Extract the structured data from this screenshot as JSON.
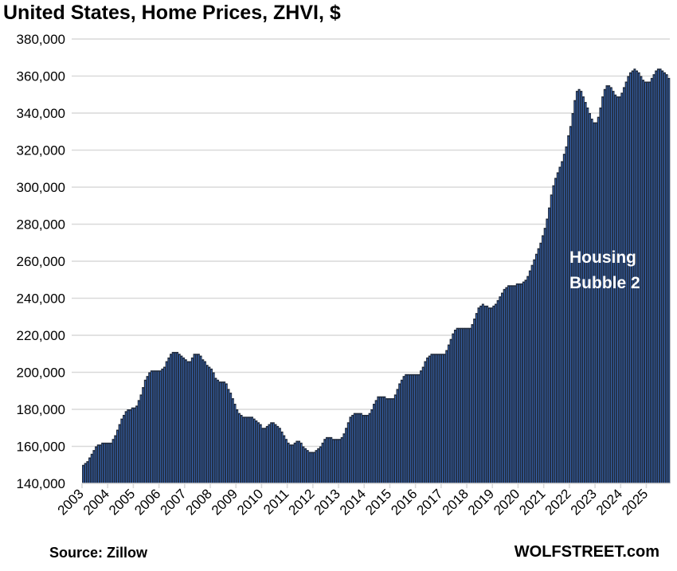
{
  "chart_data": {
    "type": "bar",
    "title": "United States, Home Prices, ZHVI, $",
    "xlabel": "",
    "ylabel": "",
    "frequency": "monthly",
    "start": "2003-01",
    "end": "2025-11",
    "ylim": [
      140000,
      380000
    ],
    "yticks": [
      "140,000",
      "160,000",
      "180,000",
      "200,000",
      "220,000",
      "240,000",
      "260,000",
      "280,000",
      "300,000",
      "320,000",
      "340,000",
      "360,000",
      "380,000"
    ],
    "xticks": [
      "2003",
      "2004",
      "2005",
      "2006",
      "2007",
      "2008",
      "2009",
      "2010",
      "2011",
      "2012",
      "2013",
      "2014",
      "2015",
      "2016",
      "2017",
      "2018",
      "2019",
      "2020",
      "2021",
      "2022",
      "2023",
      "2024",
      "2025"
    ],
    "grid": true,
    "annotation": [
      "Housing",
      "Bubble 2"
    ],
    "source": "Source: Zillow",
    "brand": "WOLFSTREET.com",
    "colors": {
      "bar": "#202a3b",
      "bar_line": "#3a6cc0",
      "grid": "#d9d9d9"
    },
    "values": [
      150000,
      151000,
      152000,
      154000,
      156000,
      158000,
      160000,
      161000,
      161000,
      162000,
      162000,
      162000,
      162000,
      162000,
      164000,
      166000,
      169000,
      172000,
      175000,
      177000,
      179000,
      180000,
      180000,
      181000,
      181000,
      182000,
      185000,
      188000,
      192000,
      196000,
      198000,
      200000,
      201000,
      201000,
      201000,
      201000,
      201000,
      202000,
      203000,
      206000,
      208000,
      210000,
      211000,
      211000,
      211000,
      210000,
      209000,
      208000,
      207000,
      206000,
      206000,
      208000,
      210000,
      210000,
      210000,
      209000,
      207000,
      206000,
      204000,
      203000,
      202000,
      200000,
      197000,
      196000,
      195000,
      195000,
      195000,
      194000,
      191000,
      189000,
      186000,
      183000,
      180000,
      178000,
      177000,
      176000,
      176000,
      176000,
      176000,
      176000,
      175000,
      174000,
      173000,
      172000,
      170000,
      170000,
      171000,
      172000,
      173000,
      173000,
      172000,
      171000,
      170000,
      168000,
      166000,
      164000,
      162000,
      161000,
      161000,
      162000,
      163000,
      163000,
      162000,
      160000,
      159000,
      158000,
      157000,
      157000,
      157000,
      158000,
      159000,
      160000,
      162000,
      164000,
      165000,
      165000,
      165000,
      164000,
      164000,
      164000,
      164000,
      165000,
      167000,
      170000,
      173000,
      176000,
      177000,
      178000,
      178000,
      178000,
      178000,
      177000,
      177000,
      177000,
      178000,
      180000,
      183000,
      185000,
      187000,
      187000,
      187000,
      187000,
      186000,
      186000,
      186000,
      186000,
      188000,
      191000,
      194000,
      196000,
      198000,
      199000,
      199000,
      199000,
      199000,
      199000,
      199000,
      199000,
      201000,
      203000,
      206000,
      208000,
      209000,
      210000,
      210000,
      210000,
      210000,
      210000,
      210000,
      210000,
      212000,
      215000,
      218000,
      221000,
      223000,
      224000,
      224000,
      224000,
      224000,
      224000,
      224000,
      224000,
      226000,
      229000,
      232000,
      235000,
      236000,
      237000,
      236000,
      236000,
      235000,
      235000,
      236000,
      237000,
      239000,
      241000,
      243000,
      245000,
      246000,
      247000,
      247000,
      247000,
      247000,
      248000,
      248000,
      248000,
      249000,
      250000,
      252000,
      255000,
      258000,
      261000,
      264000,
      267000,
      270000,
      274000,
      278000,
      283000,
      289000,
      296000,
      301000,
      305000,
      308000,
      311000,
      314000,
      318000,
      322000,
      328000,
      333000,
      340000,
      347000,
      352000,
      353000,
      352000,
      349000,
      346000,
      343000,
      340000,
      337000,
      335000,
      335000,
      338000,
      343000,
      349000,
      353000,
      355000,
      355000,
      354000,
      352000,
      350000,
      349000,
      349000,
      351000,
      354000,
      357000,
      360000,
      362000,
      363000,
      364000,
      363000,
      362000,
      360000,
      358000,
      357000,
      357000,
      357000,
      359000,
      361000,
      363000,
      364000,
      364000,
      363000,
      362000,
      361000,
      359000
    ]
  }
}
